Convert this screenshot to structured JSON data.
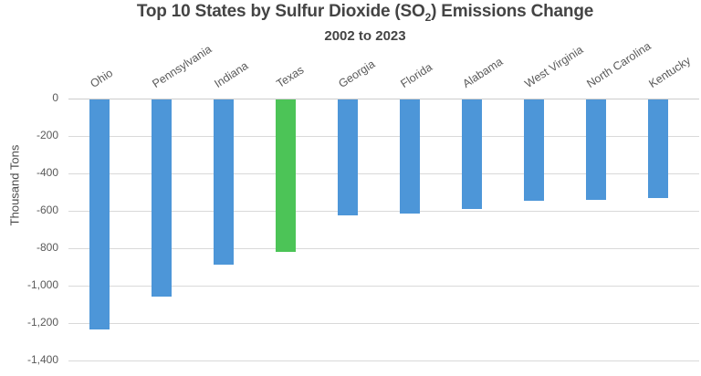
{
  "title": {
    "prefix": "Top 10 States by Sulfur Dioxide (SO",
    "sub": "2",
    "suffix": ") Emissions Change"
  },
  "subtitle": "2002 to 2023",
  "chart_data": {
    "type": "bar",
    "title": "Top 10 States by Sulfur Dioxide (SO2) Emissions Change",
    "subtitle": "2002 to 2023",
    "xlabel": "",
    "ylabel": "Thousand Tons",
    "categories": [
      "Ohio",
      "Pennsylvania",
      "Indiana",
      "Texas",
      "Georgia",
      "Florida",
      "Alabama",
      "West Virginia",
      "North Carolina",
      "Kentucky"
    ],
    "values": [
      -1230,
      -1055,
      -885,
      -815,
      -620,
      -610,
      -585,
      -540,
      -535,
      -525
    ],
    "ylim": [
      -1400,
      0
    ],
    "ytick_step": 200,
    "ytick_labels": [
      "0",
      "-200",
      "-400",
      "-600",
      "-800",
      "-1,000",
      "-1,200",
      "-1,400"
    ],
    "grid": true,
    "legend": false,
    "highlight_category": "Texas",
    "colors": {
      "bar_default": "#4d96d8",
      "bar_highlight": "#4cc457",
      "gridline": "#d9d9d9",
      "title_text": "#444444",
      "label_text": "#595959"
    }
  }
}
